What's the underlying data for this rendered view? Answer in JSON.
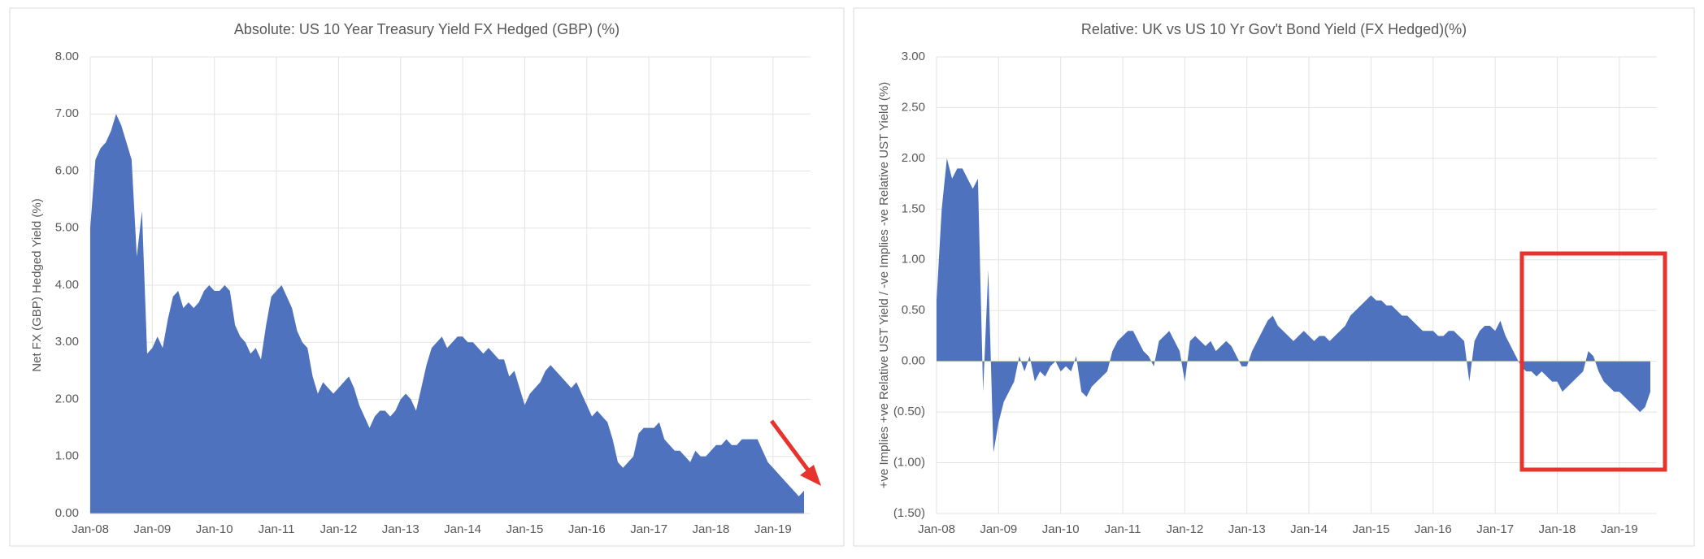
{
  "chart_data": [
    {
      "type": "area",
      "title": "Absolute: US 10 Year Treasury Yield FX Hedged (GBP) (%)",
      "y_label": "Net FX (GBP) Hedged Yield (%)",
      "color": "#4f72be",
      "grid": true,
      "ylim": [
        0,
        8
      ],
      "yticks": [
        {
          "value": 0,
          "label": "0.00"
        },
        {
          "value": 1,
          "label": "1.00"
        },
        {
          "value": 2,
          "label": "2.00"
        },
        {
          "value": 3,
          "label": "3.00"
        },
        {
          "value": 4,
          "label": "4.00"
        },
        {
          "value": 5,
          "label": "5.00"
        },
        {
          "value": 6,
          "label": "6.00"
        },
        {
          "value": 7,
          "label": "7.00"
        },
        {
          "value": 8,
          "label": "8.00"
        }
      ],
      "categories": [
        "Jan-08",
        null,
        null,
        null,
        null,
        null,
        null,
        null,
        null,
        null,
        null,
        null,
        "Jan-09",
        null,
        null,
        null,
        null,
        null,
        null,
        null,
        null,
        null,
        null,
        null,
        "Jan-10",
        null,
        null,
        null,
        null,
        null,
        null,
        null,
        null,
        null,
        null,
        null,
        "Jan-11",
        null,
        null,
        null,
        null,
        null,
        null,
        null,
        null,
        null,
        null,
        null,
        "Jan-12",
        null,
        null,
        null,
        null,
        null,
        null,
        null,
        null,
        null,
        null,
        null,
        "Jan-13",
        null,
        null,
        null,
        null,
        null,
        null,
        null,
        null,
        null,
        null,
        null,
        "Jan-14",
        null,
        null,
        null,
        null,
        null,
        null,
        null,
        null,
        null,
        null,
        null,
        "Jan-15",
        null,
        null,
        null,
        null,
        null,
        null,
        null,
        null,
        null,
        null,
        null,
        "Jan-16",
        null,
        null,
        null,
        null,
        null,
        null,
        null,
        null,
        null,
        null,
        null,
        "Jan-17",
        null,
        null,
        null,
        null,
        null,
        null,
        null,
        null,
        null,
        null,
        null,
        "Jan-18",
        null,
        null,
        null,
        null,
        null,
        null,
        null,
        null,
        null,
        null,
        null,
        "Jan-19",
        null,
        null,
        null,
        null,
        null,
        null
      ],
      "values": [
        5.0,
        6.2,
        6.4,
        6.5,
        6.7,
        7.0,
        6.8,
        6.5,
        6.2,
        4.5,
        5.3,
        2.8,
        2.9,
        3.1,
        2.9,
        3.4,
        3.8,
        3.9,
        3.6,
        3.7,
        3.6,
        3.7,
        3.9,
        4.0,
        3.9,
        3.9,
        4.0,
        3.9,
        3.3,
        3.1,
        3.0,
        2.8,
        2.9,
        2.7,
        3.3,
        3.8,
        3.9,
        4.0,
        3.8,
        3.6,
        3.2,
        3.0,
        2.9,
        2.4,
        2.1,
        2.3,
        2.2,
        2.1,
        2.2,
        2.3,
        2.4,
        2.2,
        1.9,
        1.7,
        1.5,
        1.7,
        1.8,
        1.8,
        1.7,
        1.8,
        2.0,
        2.1,
        2.0,
        1.8,
        2.2,
        2.6,
        2.9,
        3.0,
        3.1,
        2.9,
        3.0,
        3.1,
        3.1,
        3.0,
        3.0,
        2.9,
        2.8,
        2.9,
        2.8,
        2.7,
        2.7,
        2.4,
        2.5,
        2.2,
        1.9,
        2.1,
        2.2,
        2.3,
        2.5,
        2.6,
        2.5,
        2.4,
        2.3,
        2.2,
        2.3,
        2.1,
        1.9,
        1.7,
        1.8,
        1.7,
        1.6,
        1.3,
        0.9,
        0.8,
        0.9,
        1.0,
        1.4,
        1.5,
        1.5,
        1.5,
        1.6,
        1.3,
        1.2,
        1.1,
        1.1,
        1.0,
        0.9,
        1.1,
        1.0,
        1.0,
        1.1,
        1.2,
        1.2,
        1.3,
        1.2,
        1.2,
        1.3,
        1.3,
        1.3,
        1.3,
        1.1,
        0.9,
        0.8,
        0.7,
        0.6,
        0.5,
        0.4,
        0.3,
        0.4
      ]
    },
    {
      "type": "area",
      "title": "Relative: UK vs US 10 Yr Gov't Bond Yield (FX Hedged)(%)",
      "y_label": "+ve Implies +ve Relative UST Yield / -ve Implies -ve Relative UST Yield (%)",
      "color": "#4f72be",
      "grid": true,
      "ylim": [
        -1.5,
        3
      ],
      "yticks": [
        {
          "value": -1.5,
          "label": "(1.50)"
        },
        {
          "value": -1,
          "label": "(1.00)"
        },
        {
          "value": -0.5,
          "label": "(0.50)"
        },
        {
          "value": 0,
          "label": "0.00"
        },
        {
          "value": 0.5,
          "label": "0.50"
        },
        {
          "value": 1,
          "label": "1.00"
        },
        {
          "value": 1.5,
          "label": "1.50"
        },
        {
          "value": 2,
          "label": "2.00"
        },
        {
          "value": 2.5,
          "label": "2.50"
        },
        {
          "value": 3,
          "label": "3.00"
        }
      ],
      "categories": [
        "Jan-08",
        null,
        null,
        null,
        null,
        null,
        null,
        null,
        null,
        null,
        null,
        null,
        "Jan-09",
        null,
        null,
        null,
        null,
        null,
        null,
        null,
        null,
        null,
        null,
        null,
        "Jan-10",
        null,
        null,
        null,
        null,
        null,
        null,
        null,
        null,
        null,
        null,
        null,
        "Jan-11",
        null,
        null,
        null,
        null,
        null,
        null,
        null,
        null,
        null,
        null,
        null,
        "Jan-12",
        null,
        null,
        null,
        null,
        null,
        null,
        null,
        null,
        null,
        null,
        null,
        "Jan-13",
        null,
        null,
        null,
        null,
        null,
        null,
        null,
        null,
        null,
        null,
        null,
        "Jan-14",
        null,
        null,
        null,
        null,
        null,
        null,
        null,
        null,
        null,
        null,
        null,
        "Jan-15",
        null,
        null,
        null,
        null,
        null,
        null,
        null,
        null,
        null,
        null,
        null,
        "Jan-16",
        null,
        null,
        null,
        null,
        null,
        null,
        null,
        null,
        null,
        null,
        null,
        "Jan-17",
        null,
        null,
        null,
        null,
        null,
        null,
        null,
        null,
        null,
        null,
        null,
        "Jan-18",
        null,
        null,
        null,
        null,
        null,
        null,
        null,
        null,
        null,
        null,
        null,
        "Jan-19",
        null,
        null,
        null,
        null,
        null,
        null
      ],
      "values": [
        0.6,
        1.5,
        2.0,
        1.8,
        1.9,
        1.9,
        1.8,
        1.7,
        1.8,
        -0.3,
        0.9,
        -0.9,
        -0.6,
        -0.4,
        -0.3,
        -0.2,
        0.05,
        -0.1,
        0.05,
        -0.2,
        -0.1,
        -0.15,
        -0.05,
        0.0,
        -0.1,
        -0.05,
        -0.1,
        0.05,
        -0.3,
        -0.35,
        -0.25,
        -0.2,
        -0.15,
        -0.1,
        0.1,
        0.2,
        0.25,
        0.3,
        0.3,
        0.2,
        0.1,
        0.05,
        -0.05,
        0.2,
        0.25,
        0.3,
        0.2,
        0.1,
        -0.2,
        0.2,
        0.25,
        0.2,
        0.15,
        0.2,
        0.1,
        0.15,
        0.2,
        0.15,
        0.05,
        -0.05,
        -0.05,
        0.1,
        0.2,
        0.3,
        0.4,
        0.45,
        0.35,
        0.3,
        0.25,
        0.2,
        0.25,
        0.3,
        0.25,
        0.2,
        0.25,
        0.25,
        0.2,
        0.25,
        0.3,
        0.35,
        0.45,
        0.5,
        0.55,
        0.6,
        0.65,
        0.6,
        0.6,
        0.55,
        0.55,
        0.5,
        0.45,
        0.45,
        0.4,
        0.35,
        0.3,
        0.3,
        0.3,
        0.25,
        0.25,
        0.3,
        0.3,
        0.25,
        0.2,
        -0.2,
        0.2,
        0.3,
        0.35,
        0.35,
        0.3,
        0.4,
        0.25,
        0.15,
        0.05,
        -0.05,
        -0.1,
        -0.1,
        -0.15,
        -0.1,
        -0.15,
        -0.2,
        -0.2,
        -0.3,
        -0.25,
        -0.2,
        -0.15,
        -0.1,
        0.1,
        0.05,
        -0.1,
        -0.2,
        -0.25,
        -0.3,
        -0.3,
        -0.35,
        -0.4,
        -0.45,
        -0.5,
        -0.45,
        -0.3
      ]
    }
  ]
}
